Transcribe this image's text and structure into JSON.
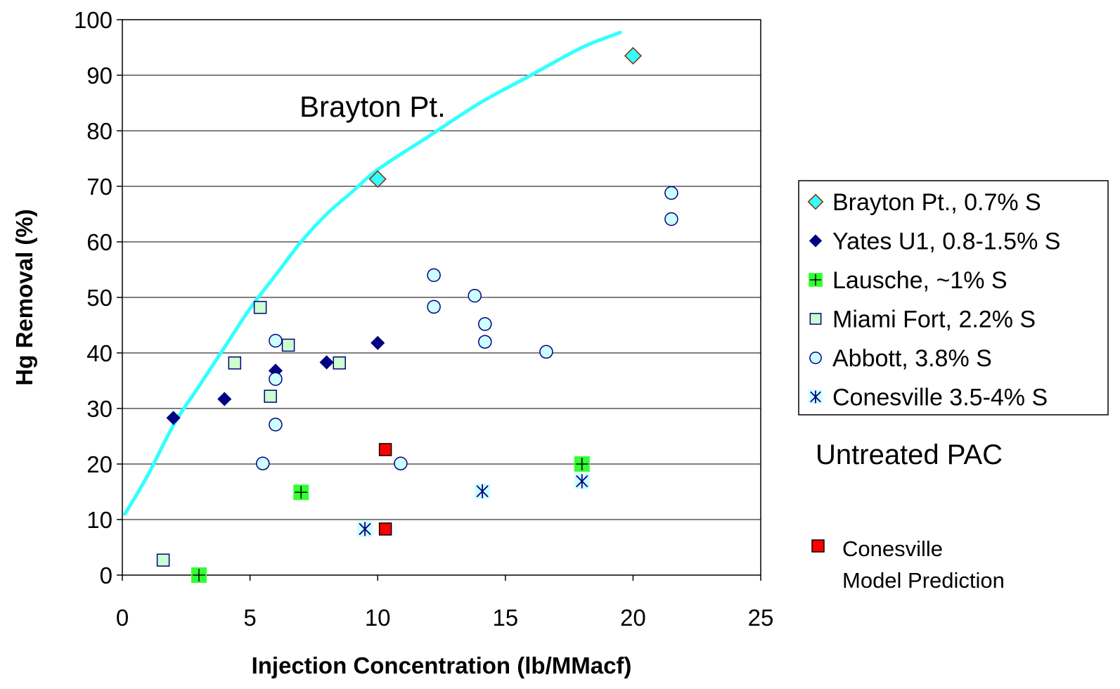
{
  "chart_data": {
    "type": "scatter",
    "xlabel": "Injection Concentration (lb/MMacf)",
    "ylabel": "Hg Removal (%)",
    "xlim": [
      0,
      25
    ],
    "ylim": [
      0,
      100
    ],
    "x_ticks": [
      "0",
      "5",
      "10",
      "15",
      "20",
      "25"
    ],
    "y_ticks": [
      "0",
      "10",
      "20",
      "30",
      "40",
      "50",
      "60",
      "70",
      "80",
      "90",
      "100"
    ],
    "grid": "horizontal",
    "legend_position": "right",
    "series": [
      {
        "name": "Brayton Pt., 0.7% S",
        "marker": "diamond",
        "fill": "#33FFFF",
        "stroke": "#8B2500",
        "points": [
          [
            10,
            71.3
          ],
          [
            20,
            93.5
          ]
        ]
      },
      {
        "name": "Yates U1, 0.8-1.5% S",
        "marker": "diamond-solid",
        "fill": "#000080",
        "stroke": "#000080",
        "points": [
          [
            2,
            28.3
          ],
          [
            4,
            31.7
          ],
          [
            6,
            36.8
          ],
          [
            8,
            38.3
          ],
          [
            10,
            41.8
          ]
        ]
      },
      {
        "name": "Lausche, ~1% S",
        "marker": "plus-square",
        "fill": "#33FF33",
        "stroke": "#000000",
        "points": [
          [
            3,
            0
          ],
          [
            7,
            14.9
          ],
          [
            18,
            20
          ]
        ]
      },
      {
        "name": "Miami Fort, 2.2% S",
        "marker": "square",
        "fill": "#CCFFCC",
        "stroke": "#000080",
        "points": [
          [
            1.6,
            2.7
          ],
          [
            4.4,
            38.2
          ],
          [
            5.4,
            48.2
          ],
          [
            5.8,
            32.2
          ],
          [
            6.5,
            41.4
          ],
          [
            8.5,
            38.2
          ]
        ]
      },
      {
        "name": "Abbott, 3.8% S",
        "marker": "circle",
        "fill": "#CCFFFF",
        "stroke": "#000080",
        "points": [
          [
            5.5,
            20.1
          ],
          [
            6,
            27.1
          ],
          [
            6,
            35.3
          ],
          [
            6,
            42.2
          ],
          [
            10.9,
            20.1
          ],
          [
            12.2,
            48.3
          ],
          [
            12.2,
            54
          ],
          [
            13.8,
            50.3
          ],
          [
            14.2,
            45.2
          ],
          [
            14.2,
            42
          ],
          [
            16.6,
            40.2
          ],
          [
            21.5,
            64.1
          ],
          [
            21.5,
            68.8
          ]
        ]
      },
      {
        "name": "Conesville 3.5-4% S",
        "marker": "asterisk",
        "fill": "#CCFFFF",
        "stroke": "#000080",
        "points": [
          [
            9.5,
            8.3
          ],
          [
            14.1,
            15.1
          ],
          [
            18,
            16.9
          ]
        ]
      }
    ],
    "model_series": {
      "name": "Conesville Model Prediction",
      "label_lines": [
        "Conesville",
        "Model Prediction"
      ],
      "marker": "square-solid",
      "fill": "#FF0000",
      "stroke": "#000000",
      "points": [
        [
          10.3,
          8.3
        ],
        [
          10.3,
          22.6
        ]
      ]
    },
    "curve": {
      "label": "Brayton Pt.",
      "color": "#33FFFF",
      "points": [
        [
          0.1,
          11
        ],
        [
          1,
          18
        ],
        [
          2,
          27
        ],
        [
          3,
          34
        ],
        [
          4,
          41
        ],
        [
          5,
          48
        ],
        [
          6,
          54
        ],
        [
          7,
          60
        ],
        [
          8,
          65
        ],
        [
          9,
          69
        ],
        [
          10,
          73
        ],
        [
          12,
          79
        ],
        [
          14,
          85
        ],
        [
          16,
          90
        ],
        [
          18,
          95
        ],
        [
          19.5,
          97.7
        ]
      ]
    },
    "annotation": "Untreated PAC"
  }
}
